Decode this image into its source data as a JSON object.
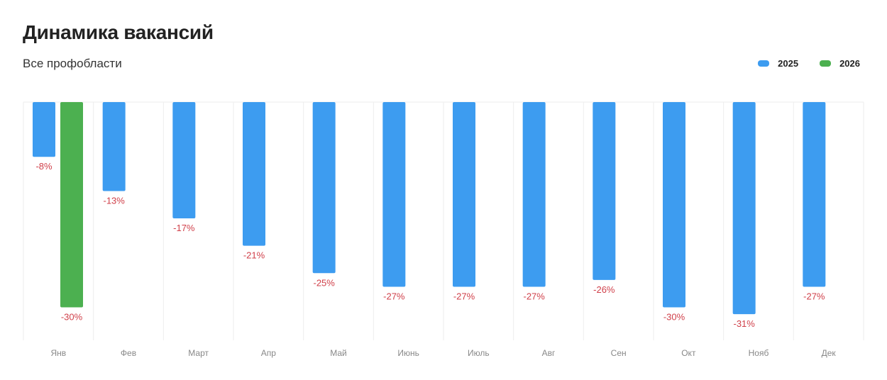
{
  "header": {
    "title": "Динамика вакансий",
    "subtitle": "Все профобласти"
  },
  "legend": [
    {
      "name": "2025",
      "color": "#3d9cf0"
    },
    {
      "name": "2026",
      "color": "#4cb050"
    }
  ],
  "chart_data": {
    "type": "bar",
    "categories": [
      "Янв",
      "Фев",
      "Март",
      "Апр",
      "Май",
      "Июнь",
      "Июль",
      "Авг",
      "Сен",
      "Окт",
      "Нояб",
      "Дек"
    ],
    "series": [
      {
        "name": "2025",
        "color": "#3d9cf0",
        "values": [
          -8,
          -13,
          -17,
          -21,
          -25,
          -27,
          -27,
          -27,
          -26,
          -30,
          -31,
          -27
        ]
      },
      {
        "name": "2026",
        "color": "#4cb050",
        "values": [
          -30,
          null,
          null,
          null,
          null,
          null,
          null,
          null,
          null,
          null,
          null,
          null
        ]
      }
    ],
    "data_labels": [
      [
        "-8%",
        "-13%",
        "-17%",
        "-21%",
        "-25%",
        "-27%",
        "-27%",
        "-27%",
        "-26%",
        "-30%",
        "-31%",
        "-27%"
      ],
      [
        "-30%",
        null,
        null,
        null,
        null,
        null,
        null,
        null,
        null,
        null,
        null,
        null
      ]
    ],
    "ylim": [
      -35,
      0
    ],
    "legend_position": "top-right",
    "grid": "vertical"
  }
}
